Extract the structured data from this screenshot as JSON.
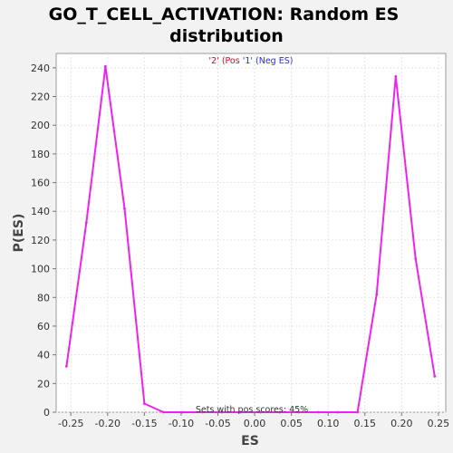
{
  "chart_data": {
    "type": "line",
    "title_line1": "GO_T_CELL_ACTIVATION: Random ES",
    "title_line2": "distribution",
    "xlabel": "ES",
    "ylabel": "P(ES)",
    "xlim": [
      -0.27,
      0.26
    ],
    "ylim": [
      0,
      250
    ],
    "x_ticks": [
      "-0.25",
      "-0.20",
      "-0.15",
      "-0.10",
      "-0.05",
      "0.00",
      "0.05",
      "0.10",
      "0.15",
      "0.20",
      "0.25"
    ],
    "y_ticks": [
      "0",
      "20",
      "40",
      "60",
      "80",
      "100",
      "120",
      "140",
      "160",
      "180",
      "200",
      "220",
      "240"
    ],
    "grid": true,
    "legend": {
      "item1_label": "'2' (Pos",
      "item1_color": "#e8002a",
      "item2_label": "'1' (Neg ES)",
      "item2_color": "#2a2aff"
    },
    "annotation": "Sets with pos scores: 45%",
    "series": [
      {
        "color": "#ee22ee",
        "points": [
          [
            -0.256,
            32
          ],
          [
            -0.229,
            132
          ],
          [
            -0.203,
            241
          ],
          [
            -0.177,
            142
          ],
          [
            -0.15,
            6
          ],
          [
            -0.124,
            0
          ],
          [
            -0.098,
            0
          ],
          [
            -0.071,
            0
          ],
          [
            -0.045,
            0
          ],
          [
            -0.019,
            0
          ],
          [
            0.008,
            0
          ],
          [
            0.034,
            0
          ],
          [
            0.06,
            0
          ],
          [
            0.087,
            0
          ],
          [
            0.113,
            0
          ],
          [
            0.14,
            0
          ],
          [
            0.166,
            82
          ],
          [
            0.192,
            234
          ],
          [
            0.219,
            107
          ],
          [
            0.245,
            25
          ]
        ]
      }
    ]
  }
}
